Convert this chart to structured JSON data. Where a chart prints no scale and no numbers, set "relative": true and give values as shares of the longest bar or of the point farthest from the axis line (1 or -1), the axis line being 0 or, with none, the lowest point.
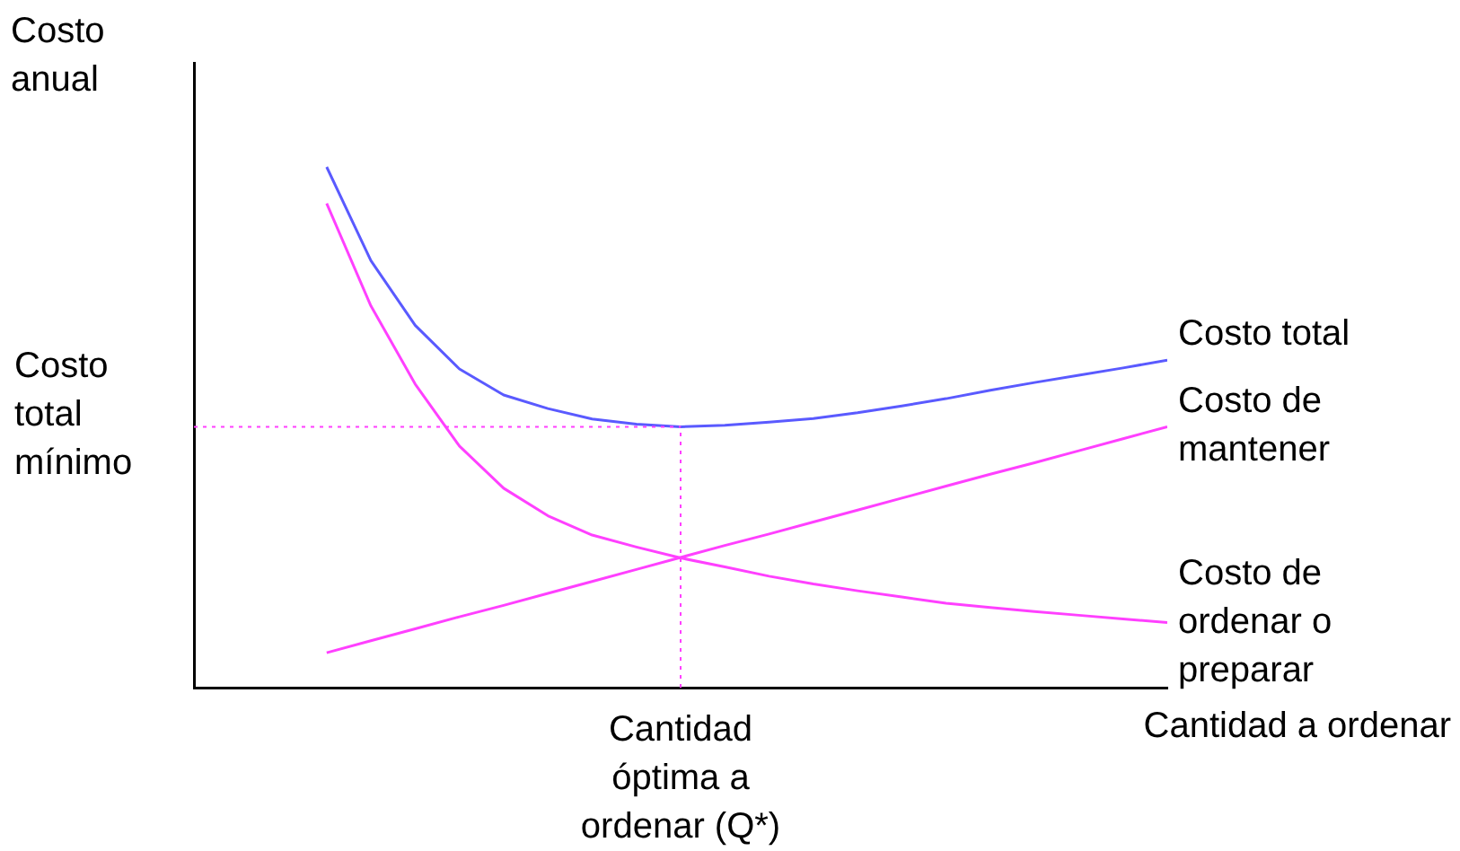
{
  "chart_data": {
    "type": "line",
    "relative": true,
    "annotations": [
      "Costo anual"
    ],
    "xlabel": "Cantidad a ordenar",
    "grid": false,
    "legend": false,
    "marker": "none",
    "line_style": "solid",
    "categories": [
      null,
      null,
      null,
      null,
      null,
      null,
      null,
      null,
      null,
      null,
      null,
      null,
      null,
      null,
      null,
      null,
      null,
      null,
      null,
      null
    ],
    "series": [
      {
        "name": "Costo total",
        "color": "#5a5aff",
        "values": [
          1,
          0.82,
          0.696,
          0.612,
          0.562,
          0.536,
          0.516,
          0.506,
          0.501,
          0.504,
          0.51,
          0.517,
          0.528,
          0.541,
          0.555,
          0.571,
          0.586,
          0.6,
          0.614,
          0.629
        ]
      },
      {
        "name": "Costo de mantener",
        "color": "#ff40ff",
        "values": [
          0.067,
          0.09,
          0.113,
          0.136,
          0.158,
          0.181,
          0.204,
          0.227,
          0.25,
          0.273,
          0.295,
          0.318,
          0.341,
          0.364,
          0.387,
          0.41,
          0.432,
          0.455,
          0.478,
          0.501
        ]
      },
      {
        "name": "Costo de ordenar o preparar",
        "color": "#ff40ff",
        "values": [
          0.93,
          0.733,
          0.583,
          0.464,
          0.383,
          0.33,
          0.293,
          0.27,
          0.249,
          0.232,
          0.214,
          0.199,
          0.186,
          0.174,
          0.162,
          0.154,
          0.146,
          0.139,
          0.132,
          0.125
        ]
      }
    ],
    "ref_lines": [
      {
        "axis": "y",
        "value": 0.501,
        "label": "Costo total mínimo",
        "color": "#ff40ff",
        "line_style": "dotted"
      },
      {
        "axis": "x",
        "label": "Cantidad óptima a ordenar (Q*)",
        "color": "#ff40ff",
        "line_style": "dotted"
      }
    ]
  }
}
